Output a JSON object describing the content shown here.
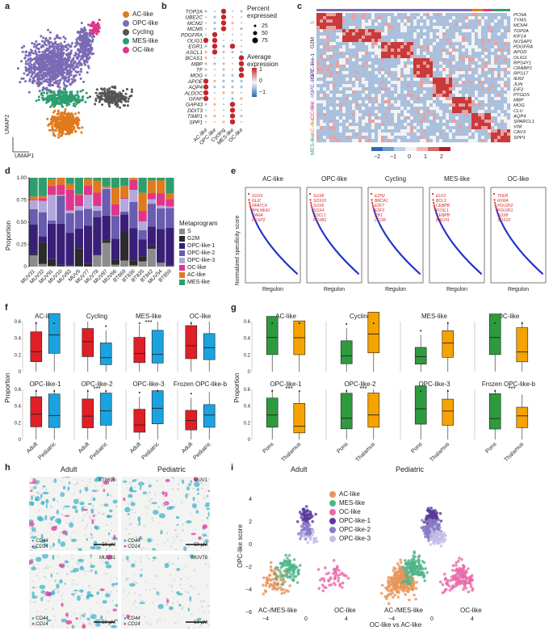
{
  "panels": {
    "a": "a",
    "b": "b",
    "c": "c",
    "d": "d",
    "e": "e",
    "f": "f",
    "g": "g",
    "h": "h",
    "i": "i"
  },
  "colors": {
    "ac": "#e07a1f",
    "opc": "#7b6bb5",
    "cycling": "#4a4a4a",
    "mes": "#2e9e6e",
    "oc": "#e0358a",
    "opc1": "#5b3a9a",
    "opc2": "#8a7cc6",
    "opc3": "#b7aee0",
    "s": "#8c8c8c",
    "g2m": "#2b2b2b"
  },
  "panel_a": {
    "legend": [
      {
        "label": "AC-like",
        "color": "#e07a1f"
      },
      {
        "label": "OPC-like",
        "color": "#7b6bb5"
      },
      {
        "label": "Cycling",
        "color": "#555555"
      },
      {
        "label": "MES-like",
        "color": "#2e9e6e"
      },
      {
        "label": "OC-like",
        "color": "#e0358a"
      }
    ],
    "umap2": "UMAP2",
    "umap1": "UMAP1"
  },
  "panel_b": {
    "genes": [
      "TOP2A",
      "UBE2C",
      "MCM2",
      "MCM5",
      "PDGFRA",
      "OLIG1",
      "EGR1",
      "ASCL1",
      "BCAS1",
      "MBP",
      "TF",
      "MOG",
      "APOE",
      "AQP4",
      "ALDOC",
      "GFAP",
      "GAP43",
      "DDIT3",
      "TIMP1",
      "SPP1"
    ],
    "groups": [
      "AC-like",
      "OPC-like",
      "Cycling",
      "MES-like",
      "OC-like"
    ],
    "pct_title": "Percent expressed",
    "pct_vals": [
      "25",
      "50",
      "75"
    ],
    "avg_title": "Average expression",
    "avg_ticks": [
      "1",
      "0",
      "−1"
    ]
  },
  "panel_c": {
    "genes_right": [
      "PCNA",
      "TYMS",
      "MCM4",
      "TOP2A",
      "KIF14",
      "NUSAP1",
      "PDGFRA",
      "APOD",
      "OLIG1",
      "RPS4Y1",
      "CRABP1",
      "RPS17",
      "IER2",
      "JUN",
      "EIF2",
      "PTGDS",
      "MBP",
      "MOG",
      "CLU",
      "AQP4",
      "SPARCL1",
      "VIM",
      "CAV3",
      "SPP1"
    ],
    "row_labels": [
      "S",
      "G2M",
      "OPC-like-1",
      "OPC-like-2",
      "OPC-like-3",
      "OC-like",
      "AC-like",
      "MES-like"
    ],
    "scale_ticks": [
      "−2",
      "−1",
      "0",
      "1",
      "2"
    ]
  },
  "panel_d": {
    "ylabel": "Proportion",
    "yticks": [
      "0",
      "0.25",
      "0.50",
      "0.75",
      "1.00"
    ],
    "samples": [
      "MUV31",
      "MUV32",
      "MUV91",
      "MUV10",
      "MUV83",
      "MUV5",
      "MUV77",
      "MUV78",
      "MUV87",
      "MUV66",
      "BT869",
      "BT836",
      "BT835",
      "BT842",
      "MUV54",
      "BT859"
    ],
    "legend_title": "Metaprogram",
    "legend": [
      {
        "label": "S",
        "color": "#8c8c8c"
      },
      {
        "label": "G2M",
        "color": "#2b2b2b"
      },
      {
        "label": "OPC-like-1",
        "color": "#3a1f78"
      },
      {
        "label": "OPC-like-2",
        "color": "#6a5cb0"
      },
      {
        "label": "OPC-like-3",
        "color": "#b3a8dc"
      },
      {
        "label": "OC-like",
        "color": "#e0358a"
      },
      {
        "label": "AC-like",
        "color": "#e07a1f"
      },
      {
        "label": "MES-like",
        "color": "#2e9e6e"
      }
    ]
  },
  "panel_e": {
    "ylabel": "Normalized specificity score",
    "xlabel": "Regulon",
    "plots": [
      {
        "title": "AC-like",
        "genes": [
          "SOX9",
          "GLI2",
          "NFATC4",
          "BHLHE41",
          "RARA",
          "FOXP2"
        ]
      },
      {
        "title": "OPC-like",
        "genes": [
          "SOX8",
          "SOX10",
          "SOX6",
          "SOX4",
          "ASCL1",
          "FOXB1"
        ]
      },
      {
        "title": "Cycling",
        "genes": [
          "EZH2",
          "BRCA1",
          "E2F7",
          "E2F3",
          "RB1",
          "LCOR"
        ]
      },
      {
        "title": "MES-like",
        "genes": [
          "ELF3",
          "BCL3",
          "CEBPB",
          "FOSL1",
          "CEBPB",
          "BACH1"
        ]
      },
      {
        "title": "OC-like",
        "genes": [
          "TFEB",
          "RXRA",
          "POU2F2",
          "POU3F1",
          "SOX8",
          "SOX10"
        ]
      }
    ]
  },
  "panel_f": {
    "ylabel": "Proportion",
    "top_titles": [
      "AC-like",
      "Cycling",
      "MES-like",
      "OC-like"
    ],
    "bottom_titles": [
      "OPC-like-1",
      "OPC-like-2",
      "OPC-like-3",
      "Frozen OPC-like-b"
    ],
    "sig": "***",
    "xcats": [
      "Adult",
      "Pediatric"
    ],
    "yticks_top": [
      "0",
      "0.2",
      "0.4",
      "0.6"
    ],
    "yticks_bot": [
      "0",
      "0.2",
      "0.4",
      "0.6"
    ]
  },
  "panel_g": {
    "ylabel": "Proportion",
    "top_titles": [
      "AC-like",
      "Cycling",
      "MES-like",
      "OC-like"
    ],
    "bottom_titles": [
      "OPC-like-1",
      "OPC-like-2",
      "OPC-like-3",
      "Frozen OPC-like-b"
    ],
    "sig": "***",
    "xcats": [
      "Pons",
      "Thalamus"
    ],
    "yticks_top": [
      "0",
      "0.2",
      "0.4",
      "0.6"
    ],
    "yticks_bot": [
      "0",
      "0.2",
      "0.4",
      "0.6"
    ]
  },
  "panel_h": {
    "col_titles": [
      "Adult",
      "Pediatric"
    ],
    "tiles": [
      {
        "sample": "XT8698",
        "scale": "50 μM"
      },
      {
        "sample": "MUV1",
        "scale": "50 μM"
      },
      {
        "sample": "MUV31",
        "scale": "50 μM"
      },
      {
        "sample": "MUV78",
        "scale": "50 μM"
      }
    ],
    "markers": [
      "CD44",
      "CD14"
    ]
  },
  "panel_i": {
    "col_titles": [
      "Adult",
      "Pediatric"
    ],
    "legend": [
      {
        "label": "AC-like",
        "color": "#e8955a"
      },
      {
        "label": "MES-like",
        "color": "#4fb58a"
      },
      {
        "label": "OC-like",
        "color": "#ea6aa9"
      },
      {
        "label": "OPC-like-1",
        "color": "#5b3a9a"
      },
      {
        "label": "OPC-like-2",
        "color": "#8a7cc6"
      },
      {
        "label": "OPC-like-3",
        "color": "#c5bde6"
      }
    ],
    "ylabel": "OPC-like score",
    "xlabel": "OC-like vs AC-like",
    "left_corner": "AC-/MES-like",
    "right_corner": "OC-like",
    "yticks": [
      "−6",
      "−4",
      "−2",
      "0",
      "2",
      "4"
    ],
    "xticks": [
      "−4",
      "0",
      "4"
    ]
  }
}
